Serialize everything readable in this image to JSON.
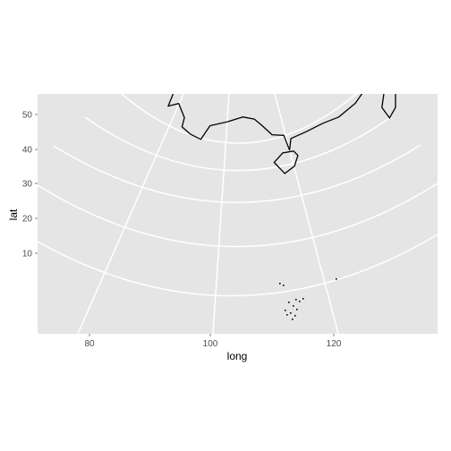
{
  "chart_data": {
    "type": "map",
    "projection": "conic",
    "title": "",
    "xlabel": "long",
    "ylabel": "lat",
    "x_ticks": [
      "80",
      "100",
      "120"
    ],
    "y_ticks": [
      "50",
      "40",
      "30",
      "20",
      "10"
    ],
    "xlim": [
      70,
      137
    ],
    "ylim": [
      3,
      56
    ],
    "grid": true,
    "panel_color": "#e5e5e5",
    "grid_color": "#ffffff",
    "outline_color": "#000000",
    "region": "China",
    "outline_lonlat": [
      [
        73.7,
        39.5
      ],
      [
        75.5,
        40.3
      ],
      [
        77.5,
        40.9
      ],
      [
        80.0,
        42.0
      ],
      [
        80.4,
        44.8
      ],
      [
        82.8,
        45.3
      ],
      [
        82.5,
        47.2
      ],
      [
        85.5,
        47.1
      ],
      [
        87.3,
        49.1
      ],
      [
        90.0,
        47.8
      ],
      [
        91.0,
        45.4
      ],
      [
        95.4,
        44.3
      ],
      [
        96.3,
        42.7
      ],
      [
        100.8,
        42.6
      ],
      [
        105.0,
        41.6
      ],
      [
        107.0,
        42.4
      ],
      [
        110.4,
        42.8
      ],
      [
        111.9,
        43.7
      ],
      [
        114.5,
        45.3
      ],
      [
        117.5,
        46.6
      ],
      [
        119.0,
        47.2
      ],
      [
        115.5,
        47.8
      ],
      [
        117.8,
        49.5
      ],
      [
        119.5,
        50.3
      ],
      [
        120.5,
        52.5
      ],
      [
        123.0,
        53.5
      ],
      [
        125.5,
        52.8
      ],
      [
        127.5,
        50.0
      ],
      [
        130.5,
        48.7
      ],
      [
        134.7,
        48.3
      ],
      [
        133.5,
        45.2
      ],
      [
        131.2,
        43.0
      ],
      [
        130.3,
        42.6
      ],
      [
        128.0,
        41.8
      ],
      [
        125.0,
        40.3
      ],
      [
        122.0,
        39.0
      ],
      [
        121.3,
        39.6
      ],
      [
        121.8,
        40.8
      ],
      [
        120.5,
        40.2
      ],
      [
        119.2,
        39.2
      ],
      [
        118.0,
        38.8
      ],
      [
        117.6,
        38.3
      ],
      [
        118.9,
        37.5
      ],
      [
        119.5,
        37.2
      ],
      [
        121.0,
        37.5
      ],
      [
        122.5,
        37.2
      ],
      [
        120.5,
        36.0
      ],
      [
        119.3,
        34.9
      ],
      [
        120.3,
        33.5
      ],
      [
        121.8,
        31.8
      ],
      [
        121.7,
        30.9
      ],
      [
        121.9,
        30.0
      ],
      [
        121.5,
        29.0
      ],
      [
        120.8,
        27.8
      ],
      [
        119.8,
        26.3
      ],
      [
        118.9,
        25.0
      ],
      [
        117.4,
        23.7
      ],
      [
        115.5,
        22.7
      ],
      [
        113.8,
        22.3
      ],
      [
        112.0,
        21.7
      ],
      [
        110.4,
        21.2
      ],
      [
        110.2,
        20.2
      ],
      [
        109.7,
        21.5
      ],
      [
        108.5,
        21.6
      ],
      [
        107.4,
        22.5
      ],
      [
        106.7,
        23.0
      ],
      [
        105.5,
        23.2
      ],
      [
        104.0,
        22.8
      ],
      [
        102.1,
        22.4
      ],
      [
        101.2,
        21.2
      ],
      [
        100.1,
        21.6
      ],
      [
        99.2,
        22.2
      ],
      [
        99.4,
        23.0
      ],
      [
        98.7,
        24.2
      ],
      [
        97.6,
        23.9
      ],
      [
        98.2,
        25.4
      ],
      [
        98.7,
        27.6
      ],
      [
        97.5,
        28.3
      ],
      [
        96.2,
        28.9
      ],
      [
        94.6,
        29.3
      ],
      [
        92.1,
        27.8
      ],
      [
        90.0,
        28.2
      ],
      [
        88.8,
        27.3
      ],
      [
        88.1,
        27.9
      ],
      [
        86.0,
        27.9
      ],
      [
        84.0,
        28.8
      ],
      [
        82.0,
        30.1
      ],
      [
        81.0,
        30.2
      ],
      [
        79.0,
        31.3
      ],
      [
        78.7,
        32.6
      ],
      [
        79.5,
        33.2
      ],
      [
        78.0,
        34.3
      ],
      [
        78.0,
        35.5
      ],
      [
        76.2,
        35.8
      ],
      [
        75.0,
        36.6
      ],
      [
        74.8,
        37.3
      ],
      [
        73.7,
        39.5
      ]
    ],
    "islands_lonlat": [
      [
        [
          108.6,
          19.2
        ],
        [
          109.6,
          18.2
        ],
        [
          110.6,
          18.8
        ],
        [
          111.0,
          19.7
        ],
        [
          110.6,
          20.1
        ],
        [
          109.5,
          20.0
        ],
        [
          108.6,
          19.2
        ]
      ],
      [
        [
          120.1,
          23.0
        ],
        [
          120.7,
          22.0
        ],
        [
          121.5,
          22.8
        ],
        [
          121.9,
          24.6
        ],
        [
          121.5,
          25.3
        ],
        [
          120.8,
          24.8
        ],
        [
          120.1,
          23.0
        ]
      ]
    ]
  }
}
